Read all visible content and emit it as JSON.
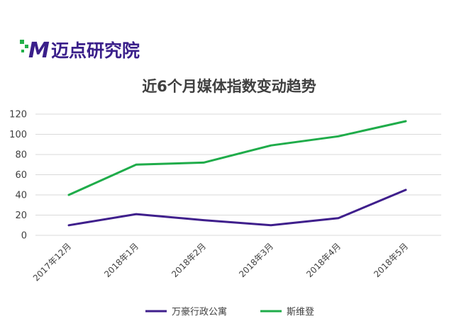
{
  "logo": {
    "text": "迈点研究院",
    "mark": "M",
    "colors": {
      "mark": "#3a1f8a",
      "accent": "#22b04a"
    }
  },
  "chart_data": {
    "type": "line",
    "title": "近6个月媒体指数变动趋势",
    "categories": [
      "2017年12月",
      "2018年1月",
      "2018年2月",
      "2018年3月",
      "2018年4月",
      "2018年5月"
    ],
    "ylim": [
      0,
      120
    ],
    "yticks": [
      "0",
      "20",
      "40",
      "60",
      "80",
      "100",
      "120"
    ],
    "grid": true,
    "legend_position": "bottom",
    "series": [
      {
        "name": "万豪行政公寓",
        "color": "#3f1f8c",
        "values": [
          10,
          21,
          15,
          10,
          17,
          45
        ]
      },
      {
        "name": "斯维登",
        "color": "#1fac4a",
        "values": [
          40,
          70,
          72,
          89,
          98,
          113
        ]
      }
    ]
  }
}
